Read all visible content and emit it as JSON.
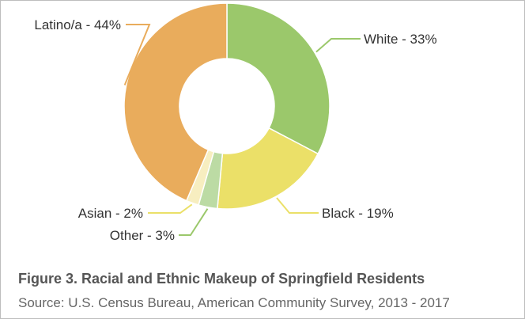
{
  "chart_data": {
    "type": "pie",
    "variant": "donut",
    "slices": [
      {
        "name": "White",
        "value": 33,
        "label": "White - 33%",
        "color": "#9bc86b"
      },
      {
        "name": "Black",
        "value": 19,
        "label": "Black - 19%",
        "color": "#ebe068"
      },
      {
        "name": "Other",
        "value": 3,
        "label": "Other - 3%",
        "color": "#bcdba4"
      },
      {
        "name": "Asian",
        "value": 2,
        "label": "Asian - 2%",
        "color": "#f7eec0"
      },
      {
        "name": "Latino/a",
        "value": 44,
        "label": "Latino/a - 44%",
        "color": "#e9ac5c"
      }
    ],
    "leader_colors": {
      "White": "#9bc86b",
      "Black": "#ebe068",
      "Other": "#9bc86b",
      "Asian": "#ebe068",
      "Latino/a": "#e9ac5c"
    }
  },
  "caption": {
    "title": "Figure 3. Racial and Ethnic Makeup of Springfield Residents",
    "source": "Source: U.S. Census Bureau, American Community Survey, 2013 - 2017"
  }
}
